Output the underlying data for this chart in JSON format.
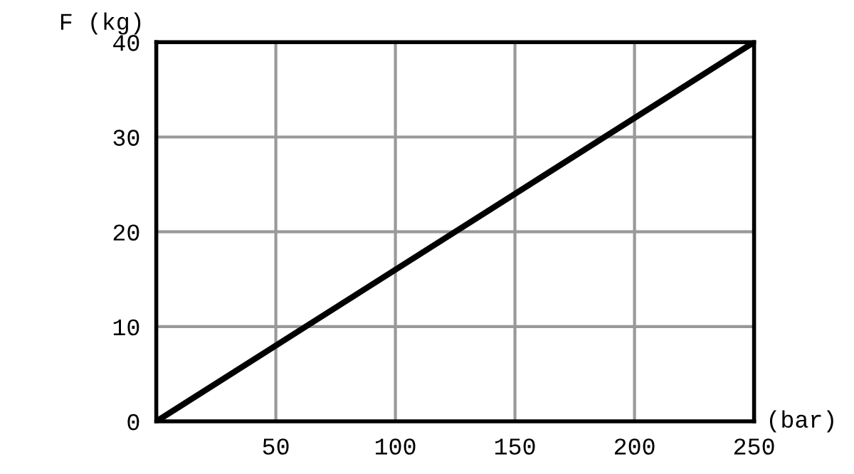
{
  "chart_data": {
    "type": "line",
    "xlabel": "(bar)",
    "ylabel": "F (kg)",
    "x": [
      0,
      250
    ],
    "series": [
      {
        "color": "#000000",
        "values": [
          0,
          40
        ]
      }
    ],
    "xlim": [
      0,
      250
    ],
    "ylim": [
      0,
      40
    ],
    "xticks": [
      50,
      100,
      150,
      200,
      250
    ],
    "yticks": [
      0,
      10,
      20,
      30,
      40
    ],
    "grid": true,
    "marker": "none",
    "line_style": "solid"
  }
}
